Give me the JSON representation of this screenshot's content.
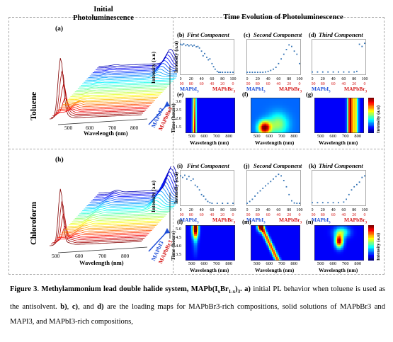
{
  "headers": {
    "initial": "Initial Photoluminescence",
    "time": "Time Evolution of Photoluminescence"
  },
  "rows": [
    {
      "solvent": "Toluene",
      "pl": "(a)",
      "comps": [
        "(b)",
        "(c)",
        "(d)"
      ],
      "maps": [
        "(e)",
        "(f)",
        "(g)"
      ]
    },
    {
      "solvent": "Chloroform",
      "pl": "(h)",
      "comps": [
        "(i)",
        "(j)",
        "(k)"
      ],
      "maps": [
        "(l)",
        "(m)",
        "(n)"
      ]
    }
  ],
  "component_titles": [
    "First Component",
    "Second Component",
    "Third Component"
  ],
  "labels": {
    "intensity_au": "Intensity (a.u)",
    "wavelength_nm": "Wavelength (nm)",
    "time_hours": "Time (hours)",
    "mapbi3": "MAPbI3",
    "mapbbr3": "MAPbBr3",
    "arrow_i": "MAPbI3",
    "arrow_br": "MAPbBr3"
  },
  "colors": {
    "blue_label": "#1f4fd8",
    "red_label": "#d62020"
  },
  "axes": {
    "pl_x_ticks": [
      "500",
      "600",
      "700",
      "800"
    ],
    "comp_x_top": [
      "0",
      "20",
      "40",
      "60",
      "80",
      "100"
    ],
    "comp_x_bottom": [
      "100",
      "80",
      "60",
      "40",
      "20",
      "0"
    ],
    "map_x_ticks": [
      "500",
      "600",
      "700",
      "800"
    ],
    "time_ticks_top": [
      "3.0",
      "2.5",
      "2.0",
      "1.5"
    ],
    "time_ticks_bottom": [
      "5.0",
      "4.5",
      "4.0",
      "3.5"
    ]
  },
  "chart_data": [
    {
      "type": "scatter",
      "panel": "b",
      "title": "First Component",
      "ylabel": "Intensity (a.u)",
      "x": [
        0,
        3,
        6,
        10,
        13,
        16,
        20,
        23,
        26,
        30,
        33,
        36,
        40,
        43,
        46,
        50,
        53,
        56,
        60,
        63,
        66,
        70,
        73,
        76,
        80,
        85,
        90,
        95,
        100
      ],
      "y": [
        0.92,
        0.9,
        0.93,
        0.88,
        0.91,
        0.87,
        0.9,
        0.86,
        0.89,
        0.84,
        0.85,
        0.8,
        0.7,
        0.55,
        0.62,
        0.5,
        0.42,
        0.45,
        0.3,
        0.2,
        0.12,
        0.05,
        0.02,
        0.02,
        0.02,
        0.02,
        0.02,
        0.02,
        0.02
      ]
    },
    {
      "type": "scatter",
      "panel": "c",
      "title": "Second Component",
      "x": [
        0,
        5,
        10,
        15,
        20,
        25,
        30,
        35,
        40,
        45,
        50,
        55,
        60,
        65,
        70,
        75,
        80,
        85,
        90,
        95,
        100
      ],
      "y": [
        0.02,
        0.02,
        0.02,
        0.02,
        0.02,
        0.02,
        0.02,
        0.03,
        0.05,
        0.08,
        0.12,
        0.18,
        0.3,
        0.45,
        0.6,
        0.75,
        0.9,
        0.85,
        0.7,
        0.6,
        0.3
      ]
    },
    {
      "type": "scatter",
      "panel": "d",
      "title": "Third Component",
      "x": [
        0,
        10,
        20,
        30,
        40,
        50,
        60,
        70,
        80,
        85,
        90,
        95,
        100
      ],
      "y": [
        0.03,
        0.03,
        0.03,
        0.03,
        0.03,
        0.03,
        0.03,
        0.03,
        0.03,
        0.05,
        0.92,
        0.85,
        0.95
      ]
    },
    {
      "type": "scatter",
      "panel": "i",
      "title": "First Component",
      "ylabel": "Intensity (a.u)",
      "x": [
        0,
        4,
        8,
        12,
        16,
        20,
        24,
        28,
        32,
        36,
        40,
        44,
        48,
        52,
        56,
        60,
        70,
        80,
        90,
        100
      ],
      "y": [
        0.9,
        0.85,
        0.92,
        0.8,
        0.88,
        0.75,
        0.8,
        0.6,
        0.55,
        0.45,
        0.3,
        0.25,
        0.15,
        0.08,
        0.04,
        0.02,
        0.02,
        0.02,
        0.02,
        0.02
      ]
    },
    {
      "type": "scatter",
      "panel": "j",
      "title": "Second Component",
      "x": [
        0,
        5,
        10,
        15,
        20,
        25,
        30,
        35,
        40,
        45,
        50,
        55,
        60,
        65,
        70,
        75,
        80,
        85,
        90,
        95,
        100
      ],
      "y": [
        0.02,
        0.08,
        0.15,
        0.25,
        0.35,
        0.42,
        0.5,
        0.58,
        0.65,
        0.72,
        0.8,
        0.88,
        0.95,
        0.9,
        0.75,
        0.55,
        0.3,
        0.1,
        0.03,
        0.02,
        0.02
      ]
    },
    {
      "type": "scatter",
      "panel": "k",
      "title": "Third Component",
      "x": [
        0,
        10,
        20,
        30,
        40,
        50,
        60,
        65,
        70,
        75,
        80,
        85,
        90,
        95,
        100
      ],
      "y": [
        0.04,
        0.04,
        0.04,
        0.04,
        0.04,
        0.04,
        0.06,
        0.15,
        0.3,
        0.45,
        0.55,
        0.62,
        0.7,
        0.85,
        0.9
      ]
    }
  ],
  "caption": {
    "fig": "Figure 3",
    "title": "Methylammonium lead double halide system, MAPb(IxBr1-x)3.",
    "bold_a": "a)",
    "text_a": "initial PL behavior when toluene is used as the antisolvent.",
    "bold_b": "b)",
    "bold_c": "c)",
    "bold_d": "d)",
    "text_and": "and",
    "text_bcd": "are the loading maps for MAPbBr3-rich compositions, solid solutions of MAPbBr3 and MAPI3, and MAPbI3-rich compositions,"
  }
}
